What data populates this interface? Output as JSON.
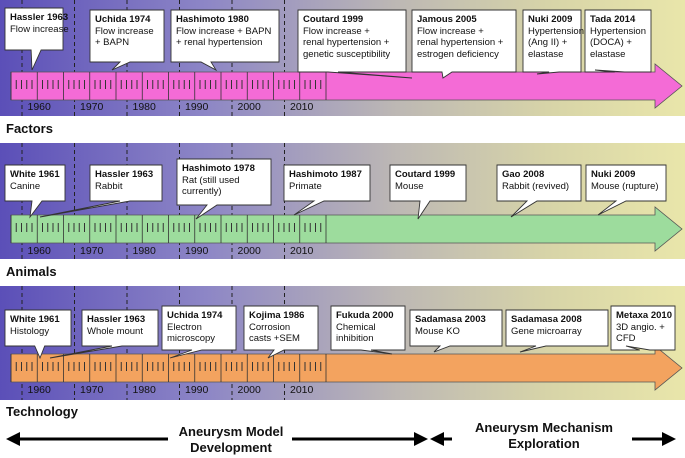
{
  "years": [
    "1960",
    "1970",
    "1980",
    "1990",
    "2000",
    "2010"
  ],
  "colors": {
    "factors": "#f46bd6",
    "animals": "#9ddc9d",
    "technology": "#f3a35f"
  },
  "factors": {
    "label": "Factors",
    "events": [
      {
        "title": "Hassler 1963",
        "text": [
          "Flow increase"
        ]
      },
      {
        "title": "Uchida 1974",
        "text": [
          "Flow increase",
          "+ BAPN"
        ]
      },
      {
        "title": "Hashimoto 1980",
        "text": [
          "Flow increase + BAPN",
          "+ renal hypertension"
        ]
      },
      {
        "title": "Coutard 1999",
        "text": [
          "Flow increase +",
          "renal hypertension +",
          "genetic susceptibility"
        ]
      },
      {
        "title": "Jamous 2005",
        "text": [
          "Flow increase +",
          "renal hypertension +",
          "estrogen deficiency"
        ]
      },
      {
        "title": "Nuki 2009",
        "text": [
          "Hypertension",
          "(Ang II) +",
          "elastase"
        ]
      },
      {
        "title": "Tada 2014",
        "text": [
          "Hypertension",
          "(DOCA) +",
          "elastase"
        ]
      }
    ]
  },
  "animals": {
    "label": "Animals",
    "events": [
      {
        "title": "White 1961",
        "text": [
          "Canine"
        ]
      },
      {
        "title": "Hassler 1963",
        "text": [
          "Rabbit"
        ]
      },
      {
        "title": "Hashimoto 1978",
        "text": [
          "Rat (still used",
          "currently)"
        ]
      },
      {
        "title": "Hashimoto 1987",
        "text": [
          "Primate"
        ]
      },
      {
        "title": "Coutard 1999",
        "text": [
          "Mouse"
        ]
      },
      {
        "title": "Gao 2008",
        "text": [
          "Rabbit (revived)"
        ]
      },
      {
        "title": "Nuki 2009",
        "text": [
          "Mouse (rupture)"
        ]
      }
    ]
  },
  "technology": {
    "label": "Technology",
    "events": [
      {
        "title": "White 1961",
        "text": [
          "Histology"
        ]
      },
      {
        "title": "Hassler 1963",
        "text": [
          "Whole mount"
        ]
      },
      {
        "title": "Uchida 1974",
        "text": [
          "Electron",
          "microscopy"
        ]
      },
      {
        "title": "Kojima 1986",
        "text": [
          "Corrosion",
          "casts +SEM"
        ]
      },
      {
        "title": "Fukuda 2000",
        "text": [
          "Chemical",
          "inhibition"
        ]
      },
      {
        "title": "Sadamasa 2003",
        "text": [
          "Mouse KO"
        ]
      },
      {
        "title": "Sadamasa 2008",
        "text": [
          "Gene microarray"
        ]
      },
      {
        "title": "Metaxa 2010",
        "text": [
          "3D angio. +",
          "CFD"
        ]
      }
    ]
  },
  "bottom": {
    "left": [
      "Aneurysm Model",
      "Development"
    ],
    "right": [
      "Aneurysm Mechanism",
      "Exploration"
    ]
  }
}
